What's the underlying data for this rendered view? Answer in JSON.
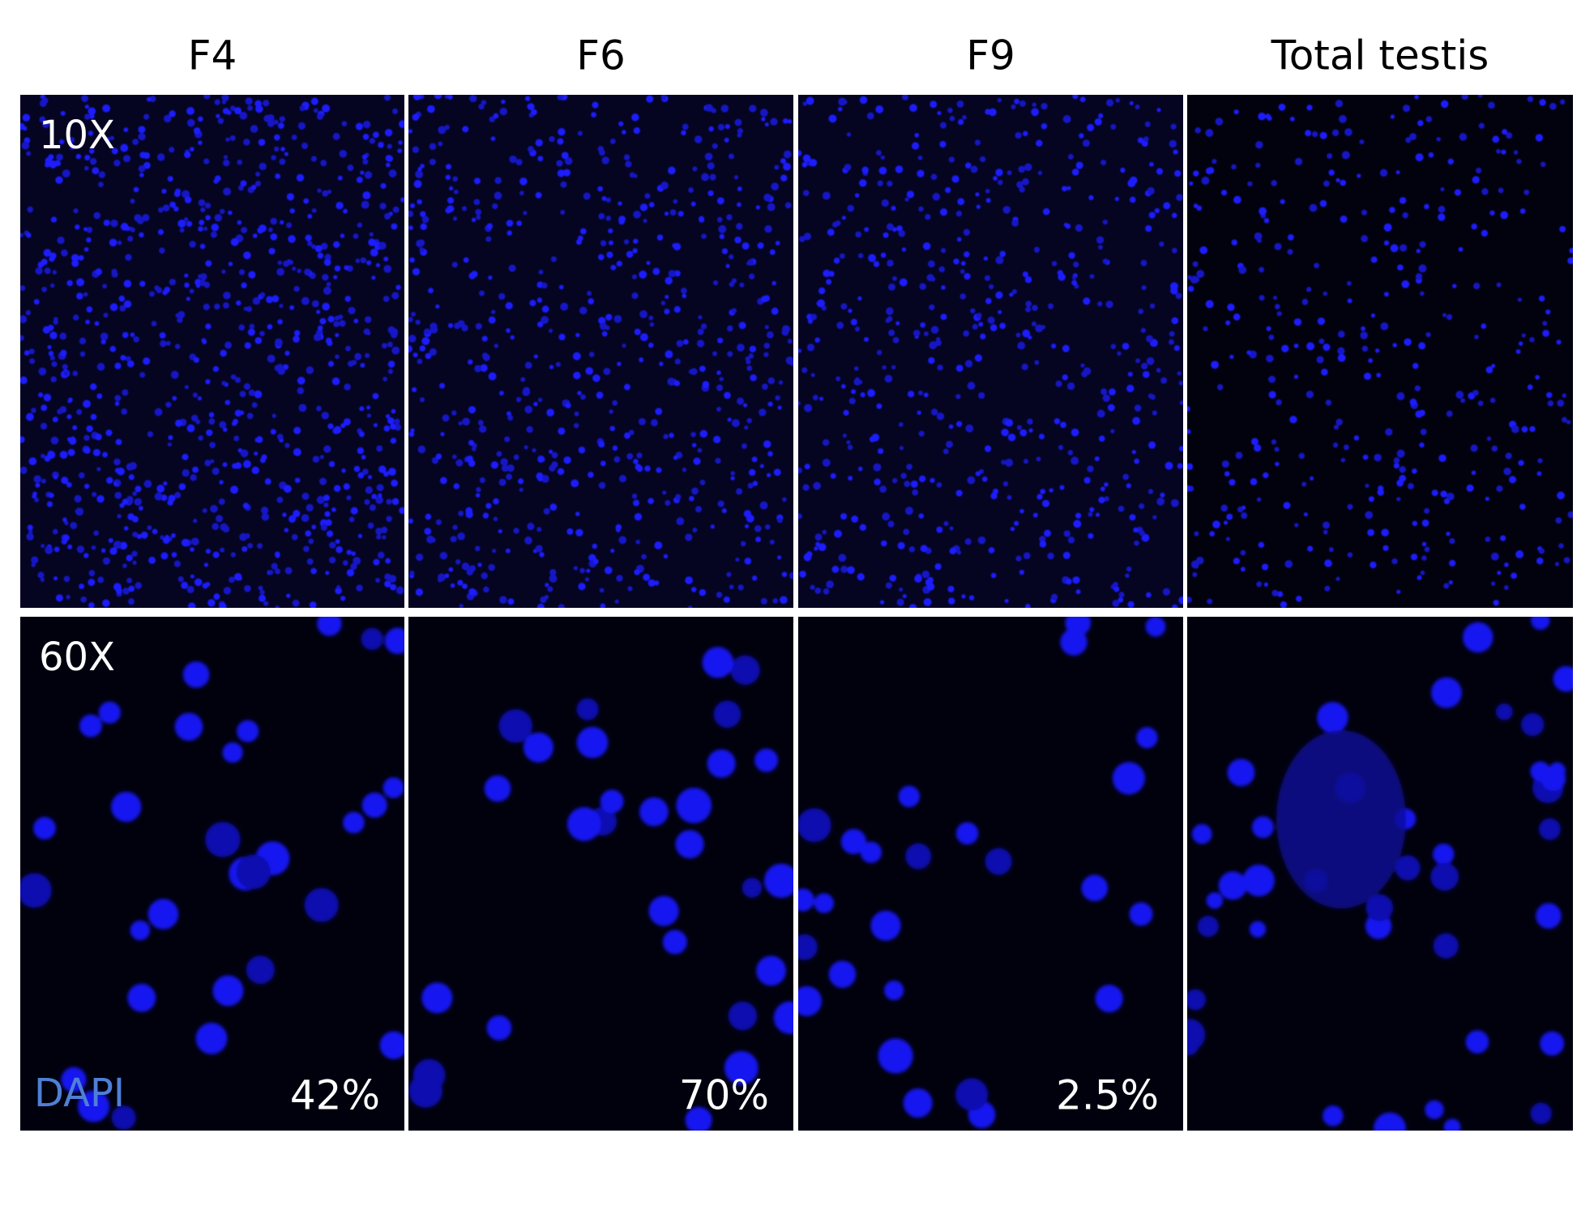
{
  "figure": {
    "columns": [
      "F4",
      "F6",
      "F9",
      "Total testis"
    ],
    "rows": [
      "10X",
      "60X"
    ],
    "stain": "DAPI",
    "percentages": [
      "42%",
      "70%",
      "2.5%"
    ]
  }
}
